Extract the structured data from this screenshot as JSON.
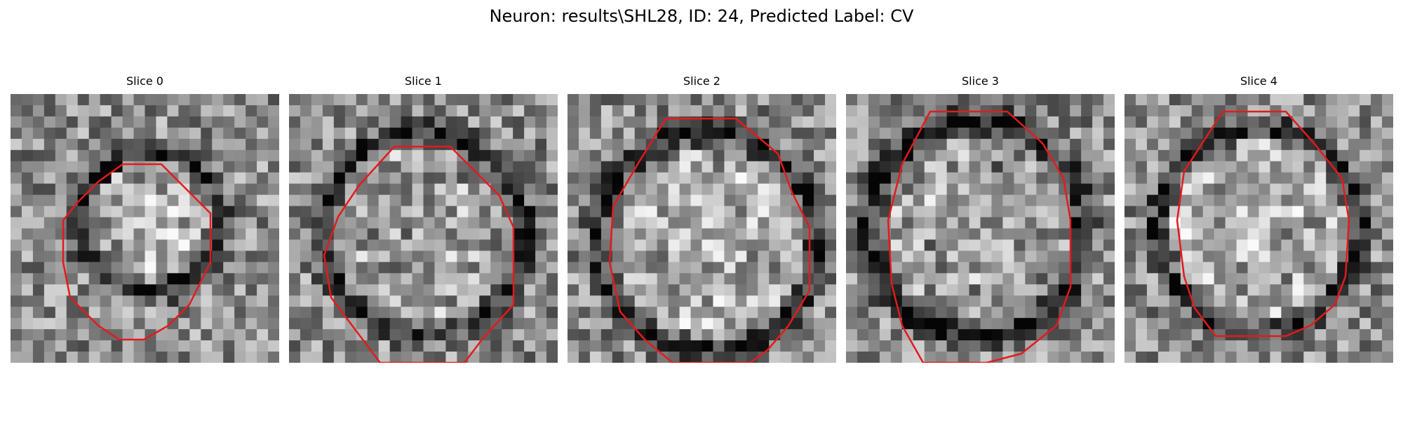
{
  "figure": {
    "title": "Neuron: results\\SHL28, ID: 24, Predicted Label: CV"
  },
  "panels": [
    {
      "title": "Slice 0"
    },
    {
      "title": "Slice 1"
    },
    {
      "title": "Slice 2"
    },
    {
      "title": "Slice 3"
    },
    {
      "title": "Slice 4"
    }
  ],
  "colors": {
    "contour": "#e41a1c",
    "background": "#ffffff"
  }
}
